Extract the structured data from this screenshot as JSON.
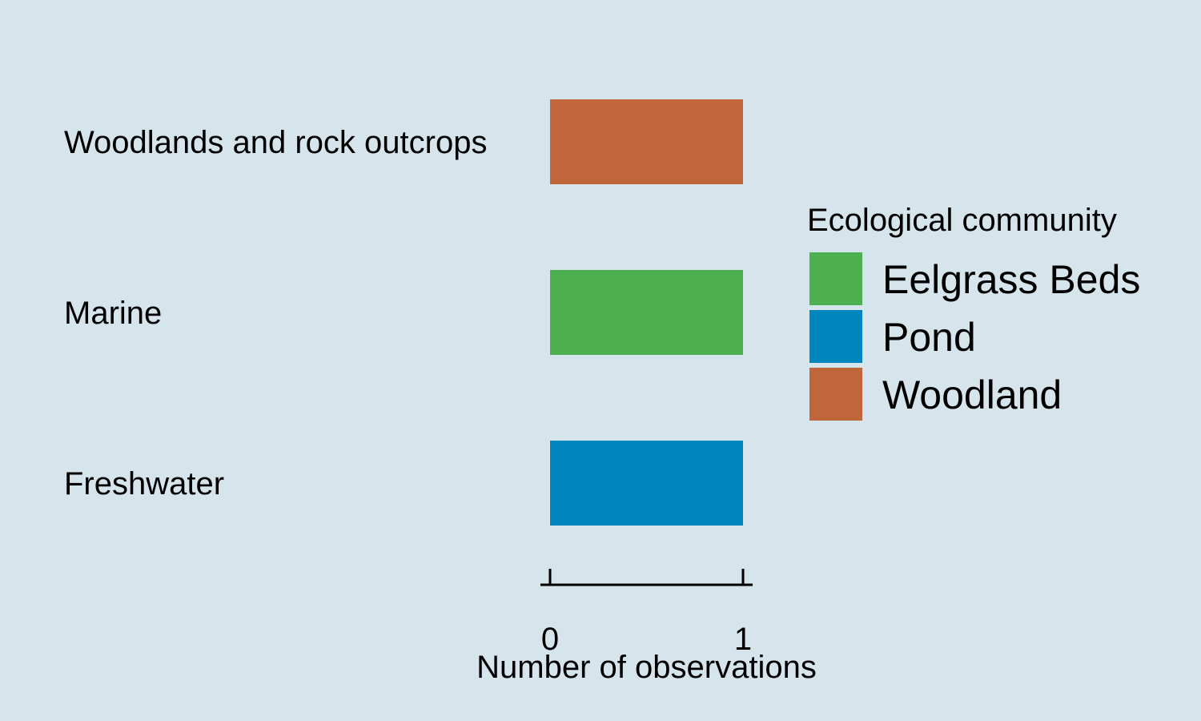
{
  "chart_data": {
    "type": "bar",
    "orientation": "horizontal",
    "categories": [
      "Woodlands and rock outcrops",
      "Marine",
      "Freshwater"
    ],
    "values": [
      1,
      1,
      1
    ],
    "bar_groups": [
      "Woodland",
      "Eelgrass Beds",
      "Pond"
    ],
    "xlabel": "Number of observations",
    "ylabel": "",
    "xlim": [
      0,
      1
    ],
    "xticks": [
      "0",
      "1"
    ],
    "grid": false,
    "legend": {
      "title": "Ecological community",
      "placement": "right",
      "entries": [
        {
          "name": "Eelgrass Beds",
          "color": "#4caf50"
        },
        {
          "name": "Pond",
          "color": "#0086bf"
        },
        {
          "name": "Woodland",
          "color": "#bf663c"
        }
      ]
    }
  },
  "colors": {
    "background": "#d6e4eb",
    "axis": "#000000"
  }
}
